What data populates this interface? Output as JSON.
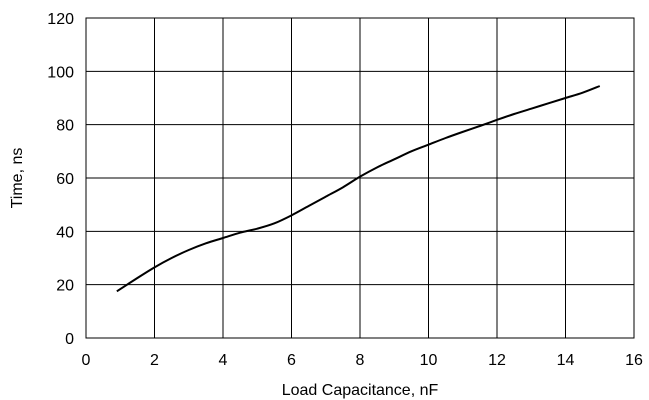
{
  "chart_data": {
    "type": "line",
    "title": "",
    "xlabel": "Load Capacitance, nF",
    "ylabel": "Time, ns",
    "xlim": [
      0,
      16
    ],
    "ylim": [
      0,
      120
    ],
    "xticks": [
      0,
      2,
      4,
      6,
      8,
      10,
      12,
      14,
      16
    ],
    "yticks": [
      0,
      20,
      40,
      60,
      80,
      100,
      120
    ],
    "xtick_labels": [
      "0",
      "2",
      "4",
      "6",
      "8",
      "10",
      "12",
      "14",
      "16"
    ],
    "ytick_labels": [
      "0",
      "20",
      "40",
      "60",
      "80",
      "100",
      "120"
    ],
    "grid": true,
    "series": [
      {
        "x": [
          0.9,
          1.5,
          2.0,
          2.5,
          3.0,
          3.5,
          4.0,
          4.5,
          5.0,
          5.5,
          6.0,
          6.5,
          7.0,
          7.5,
          8.0,
          8.5,
          9.0,
          9.5,
          10.0,
          10.5,
          11.0,
          11.5,
          12.0,
          12.5,
          13.0,
          13.5,
          14.0,
          14.5,
          15.0
        ],
        "y": [
          17.5,
          22.5,
          26.5,
          30.0,
          33.0,
          35.5,
          37.5,
          39.5,
          41.0,
          43.0,
          46.0,
          49.5,
          53.0,
          56.5,
          60.5,
          64.0,
          67.0,
          70.0,
          72.5,
          75.0,
          77.3,
          79.5,
          81.8,
          84.0,
          86.0,
          88.0,
          90.0,
          92.0,
          94.5
        ]
      }
    ],
    "colors": {
      "line": "#000000",
      "grid": "#000000",
      "axis": "#000000"
    }
  }
}
